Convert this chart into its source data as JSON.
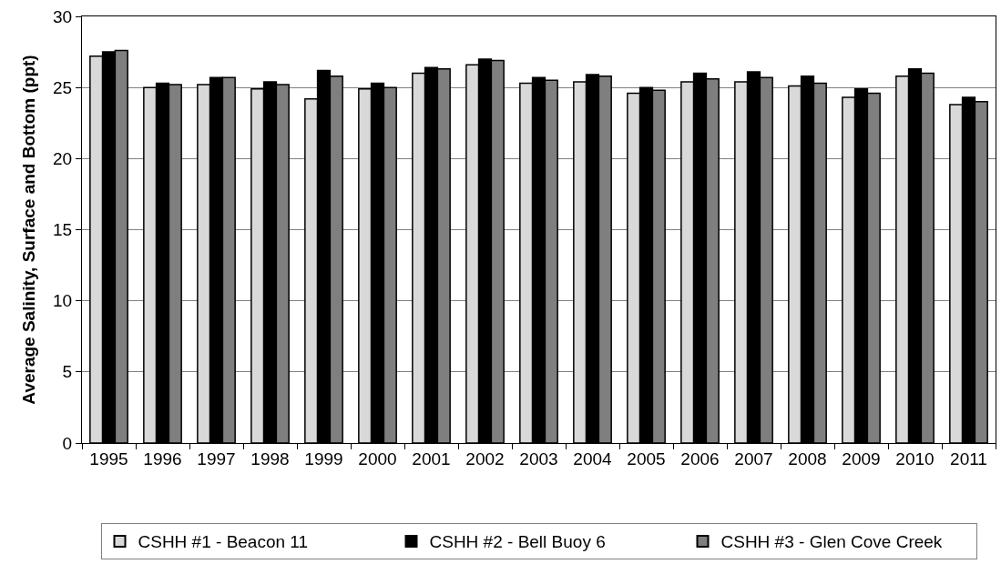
{
  "chart_data": {
    "type": "bar",
    "ylabel": "Average Salinity, Surface and Bottom (ppt)",
    "categories": [
      "1995",
      "1996",
      "1997",
      "1998",
      "1999",
      "2000",
      "2001",
      "2002",
      "2003",
      "2004",
      "2005",
      "2006",
      "2007",
      "2008",
      "2009",
      "2010",
      "2011"
    ],
    "series": [
      {
        "name": "CSHH #1 - Beacon 11",
        "color": "#d9d9d9",
        "values": [
          27.2,
          25.0,
          25.2,
          24.9,
          24.2,
          24.9,
          26.0,
          26.6,
          25.3,
          25.4,
          24.6,
          25.4,
          25.4,
          25.1,
          24.3,
          25.8,
          23.8
        ]
      },
      {
        "name": "CSHH #2 - Bell Buoy 6",
        "color": "#000000",
        "values": [
          27.5,
          25.3,
          25.7,
          25.4,
          26.2,
          25.3,
          26.4,
          27.0,
          25.7,
          25.9,
          25.0,
          26.0,
          26.1,
          25.8,
          24.9,
          26.3,
          24.3
        ]
      },
      {
        "name": "CSHH #3 - Glen Cove Creek",
        "color": "#7f7f7f",
        "values": [
          27.6,
          25.2,
          25.7,
          25.2,
          25.8,
          25.0,
          26.3,
          26.9,
          25.5,
          25.8,
          24.8,
          25.6,
          25.7,
          25.3,
          24.6,
          26.0,
          24.0
        ]
      }
    ],
    "ylim": [
      0,
      30
    ],
    "yticks": [
      0,
      5,
      10,
      15,
      20,
      25,
      30
    ],
    "grid": "y",
    "legend": "bottom"
  }
}
